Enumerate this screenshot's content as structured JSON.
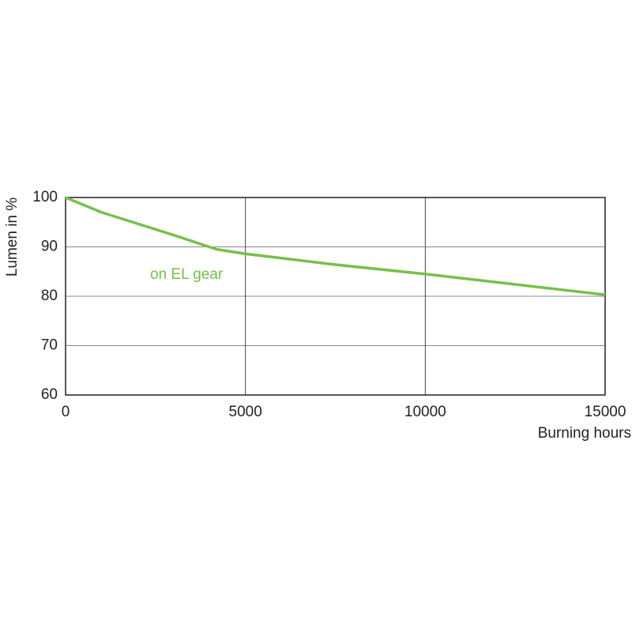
{
  "chart_data": {
    "type": "line",
    "x_label": "Burning hours",
    "y_label": "Lumen in %",
    "x": [
      0,
      1000,
      2000,
      3000,
      4200,
      5000,
      7500,
      10000,
      12500,
      15000
    ],
    "series": [
      {
        "name": "on EL gear",
        "color": "#77c04a",
        "values": [
          100,
          97,
          94.7,
          92.4,
          89.5,
          88.6,
          86.4,
          84.5,
          82.4,
          80.3
        ]
      }
    ],
    "xlim": [
      0,
      15000
    ],
    "xticks": [
      0,
      5000,
      10000,
      15000
    ],
    "ylim": [
      60,
      100
    ],
    "yticks": [
      60,
      70,
      80,
      90,
      100
    ],
    "grid": true
  }
}
